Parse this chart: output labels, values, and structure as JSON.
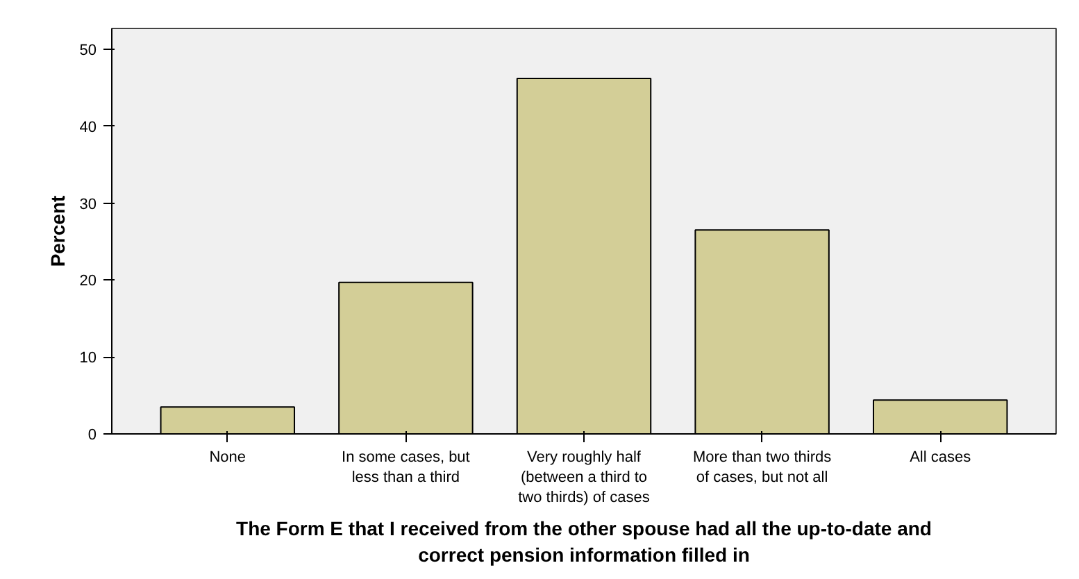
{
  "chart_data": {
    "type": "bar",
    "categories": [
      "None",
      "In some cases, but less than a third",
      "Very roughly half (between a third to two thirds) of cases",
      "More than two thirds of cases, but not all",
      "All cases"
    ],
    "values": [
      3.5,
      19.7,
      46.2,
      26.5,
      4.4
    ],
    "color": "#d3ce97",
    "xlabel": "The Form E that I received from the other spouse had all the up-to-date and correct pension information filled in",
    "ylabel": "Percent",
    "ylim": [
      0,
      52.7
    ],
    "yticks": [
      0,
      10,
      20,
      30,
      40,
      50
    ],
    "grid": false
  }
}
